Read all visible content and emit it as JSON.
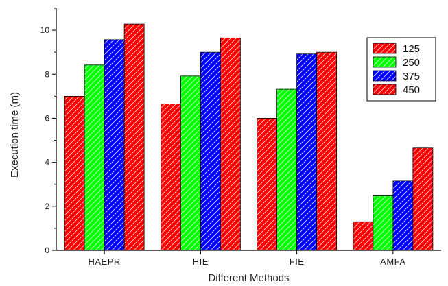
{
  "chart_data": {
    "type": "bar",
    "title": "",
    "xlabel": "Different Methods",
    "ylabel": "Execution time (m)",
    "ylim": [
      0,
      11
    ],
    "yticks": [
      0,
      2,
      4,
      6,
      8,
      10
    ],
    "categories": [
      "HAEPR",
      "HIE",
      "FIE",
      "AMFA"
    ],
    "series": [
      {
        "name": "125",
        "color": "#ff0000",
        "values": [
          7.0,
          6.65,
          6.0,
          1.3
        ]
      },
      {
        "name": "250",
        "color": "#00ff00",
        "values": [
          8.42,
          7.92,
          7.32,
          2.48
        ]
      },
      {
        "name": "375",
        "color": "#0000ff",
        "values": [
          9.57,
          9.0,
          8.92,
          3.15
        ]
      },
      {
        "name": "450",
        "color": "#ff0000",
        "values": [
          10.28,
          9.65,
          9.0,
          4.65
        ]
      }
    ],
    "grid": false,
    "legend_position": "top-right",
    "pattern": "diagonal-hatch"
  }
}
